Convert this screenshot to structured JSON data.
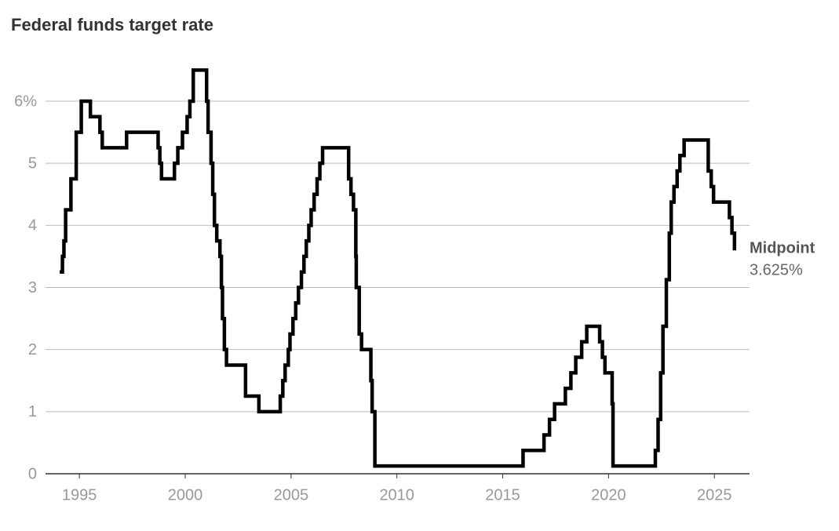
{
  "chart_data": {
    "type": "line",
    "step": "post",
    "title": "Federal funds target rate",
    "x": [
      1994.07,
      1994.2,
      1994.27,
      1994.35,
      1994.6,
      1994.85,
      1995.09,
      1995.52,
      1995.97,
      1996.08,
      1997.23,
      1998.72,
      1998.8,
      1998.88,
      1999.49,
      1999.65,
      1999.87,
      2000.09,
      2000.22,
      2000.38,
      2001.01,
      2001.08,
      2001.22,
      2001.3,
      2001.38,
      2001.49,
      2001.64,
      2001.71,
      2001.76,
      2001.85,
      2001.95,
      2002.85,
      2003.48,
      2004.49,
      2004.61,
      2004.72,
      2004.87,
      2004.95,
      2005.09,
      2005.22,
      2005.35,
      2005.49,
      2005.61,
      2005.72,
      2005.84,
      2005.95,
      2006.09,
      2006.23,
      2006.36,
      2006.49,
      2007.72,
      2007.83,
      2007.95,
      2008.06,
      2008.08,
      2008.22,
      2008.33,
      2008.77,
      2008.83,
      2008.96,
      2015.96,
      2016.95,
      2017.21,
      2017.45,
      2017.96,
      2018.22,
      2018.45,
      2018.73,
      2018.97,
      2019.58,
      2019.71,
      2019.83,
      2020.17,
      2020.21,
      2022.21,
      2022.34,
      2022.46,
      2022.57,
      2022.73,
      2022.87,
      2022.96,
      2023.09,
      2023.24,
      2023.37,
      2023.57,
      2024.71,
      2024.85,
      2024.96,
      2025.71,
      2025.83,
      2025.95,
      2026.03
    ],
    "series": [
      {
        "name": "Midpoint",
        "color": "#000000",
        "values": [
          3.25,
          3.5,
          3.75,
          4.25,
          4.75,
          5.5,
          6.0,
          5.75,
          5.5,
          5.25,
          5.5,
          5.25,
          5.0,
          4.75,
          5.0,
          5.25,
          5.5,
          5.75,
          6.0,
          6.5,
          6.0,
          5.5,
          5.0,
          4.5,
          4.0,
          3.75,
          3.5,
          3.0,
          2.5,
          2.0,
          1.75,
          1.25,
          1.0,
          1.25,
          1.5,
          1.75,
          2.0,
          2.25,
          2.5,
          2.75,
          3.0,
          3.25,
          3.5,
          3.75,
          4.0,
          4.25,
          4.5,
          4.75,
          5.0,
          5.25,
          4.75,
          4.5,
          4.25,
          3.5,
          3.0,
          2.25,
          2.0,
          1.5,
          1.0,
          0.125,
          0.375,
          0.625,
          0.875,
          1.125,
          1.375,
          1.625,
          1.875,
          2.125,
          2.375,
          2.125,
          1.875,
          1.625,
          1.125,
          0.125,
          0.375,
          0.875,
          1.625,
          2.375,
          3.125,
          3.875,
          4.375,
          4.625,
          4.875,
          5.125,
          5.375,
          4.875,
          4.625,
          4.375,
          4.125,
          3.875,
          3.625,
          3.625
        ]
      }
    ],
    "annotation": {
      "text": "Midpoint",
      "value": 3.625,
      "value_label": "3.625%"
    },
    "xlim": [
      1993.4,
      2026.66
    ],
    "xticks": [
      1995,
      2000,
      2005,
      2010,
      2015,
      2020,
      2025
    ],
    "ylim": [
      0,
      6.5
    ],
    "yticks": [
      0,
      1,
      2,
      3,
      4,
      5,
      {
        "value": 6,
        "label": "6%"
      }
    ],
    "grid": true
  }
}
